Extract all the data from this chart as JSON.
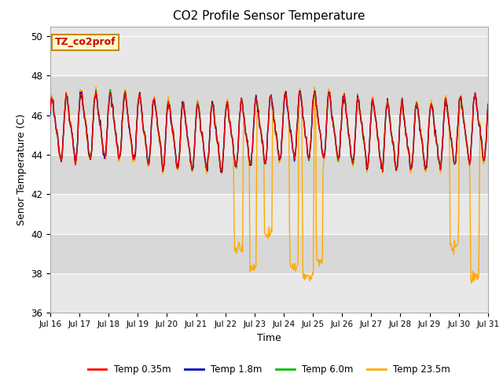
{
  "title": "CO2 Profile Sensor Temperature",
  "xlabel": "Time",
  "ylabel": "Senor Temperature (C)",
  "ylim": [
    36,
    50.5
  ],
  "annotation_text": "TZ_co2prof",
  "annotation_bg": "#ffffcc",
  "annotation_border": "#cc8800",
  "legend_colors": [
    "#ff0000",
    "#0000bb",
    "#00bb00",
    "#ffaa00"
  ],
  "legend_labels": [
    "Temp 0.35m",
    "Temp 1.8m",
    "Temp 6.0m",
    "Temp 23.5m"
  ],
  "xtick_labels": [
    "Jul 16",
    "Jul 17",
    "Jul 18",
    "Jul 19",
    "Jul 20",
    "Jul 21",
    "Jul 22",
    "Jul 23",
    "Jul 24",
    "Jul 25",
    "Jul 26",
    "Jul 27",
    "Jul 28",
    "Jul 29",
    "Jul 30",
    "Jul 31"
  ],
  "ytick_values": [
    36,
    38,
    40,
    42,
    44,
    46,
    48,
    50
  ],
  "band_colors": [
    "#e8e8e8",
    "#d8d8d8"
  ],
  "grid_color": "#ffffff"
}
